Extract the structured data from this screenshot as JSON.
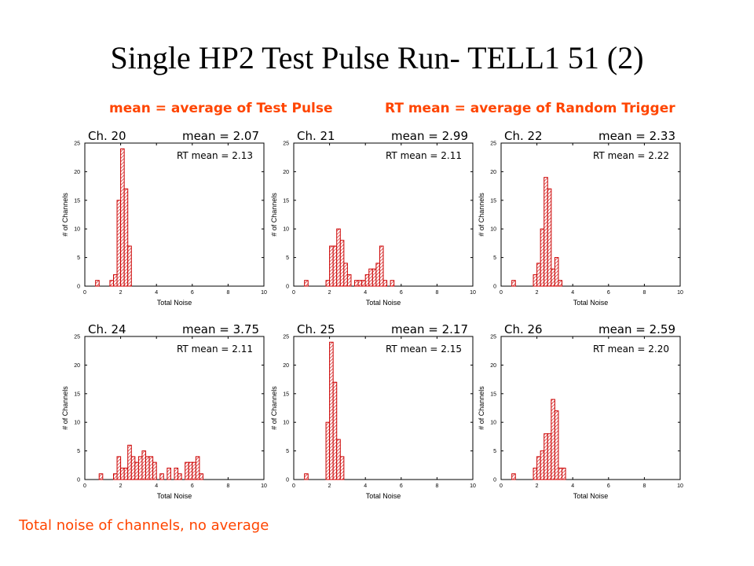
{
  "title": "Single HP2 Test Pulse Run- TELL1  51 (2)",
  "legend_left": "mean = average of Test Pulse",
  "legend_right": "RT mean = average of Random Trigger",
  "footer": "Total noise of channels, no average",
  "colors": {
    "accent": "#ff4500",
    "bar": "#cc0000"
  },
  "chart_data": [
    {
      "type": "bar",
      "channel": "Ch. 20",
      "mean": "mean = 2.07",
      "rt_mean": "RT mean = 2.13",
      "xlabel": "Total Noise",
      "ylabel": "# of Channels",
      "xlim": [
        0,
        10
      ],
      "ylim": [
        0,
        25
      ],
      "bin_width": 0.2,
      "bins": [
        [
          0.6,
          1
        ],
        [
          1.4,
          1
        ],
        [
          1.6,
          2
        ],
        [
          1.8,
          15
        ],
        [
          2.0,
          24
        ],
        [
          2.2,
          17
        ],
        [
          2.4,
          7
        ]
      ]
    },
    {
      "type": "bar",
      "channel": "Ch. 21",
      "mean": "mean = 2.99",
      "rt_mean": "RT mean = 2.11",
      "xlabel": "Total Noise",
      "ylabel": "# of Channels",
      "xlim": [
        0,
        10
      ],
      "ylim": [
        0,
        25
      ],
      "bin_width": 0.2,
      "bins": [
        [
          0.6,
          1
        ],
        [
          1.8,
          1
        ],
        [
          2.0,
          7
        ],
        [
          2.2,
          7
        ],
        [
          2.4,
          10
        ],
        [
          2.6,
          8
        ],
        [
          2.8,
          4
        ],
        [
          3.0,
          2
        ],
        [
          3.4,
          1
        ],
        [
          3.6,
          1
        ],
        [
          3.8,
          1
        ],
        [
          4.0,
          2
        ],
        [
          4.2,
          3
        ],
        [
          4.4,
          3
        ],
        [
          4.6,
          4
        ],
        [
          4.8,
          7
        ],
        [
          5.0,
          1
        ],
        [
          5.4,
          1
        ]
      ]
    },
    {
      "type": "bar",
      "channel": "Ch. 22",
      "mean": "mean = 2.33",
      "rt_mean": "RT mean = 2.22",
      "xlabel": "Total Noise",
      "ylabel": "# of Channels",
      "xlim": [
        0,
        10
      ],
      "ylim": [
        0,
        25
      ],
      "bin_width": 0.2,
      "bins": [
        [
          0.6,
          1
        ],
        [
          1.8,
          2
        ],
        [
          2.0,
          4
        ],
        [
          2.2,
          10
        ],
        [
          2.4,
          19
        ],
        [
          2.6,
          17
        ],
        [
          2.8,
          3
        ],
        [
          3.0,
          5
        ],
        [
          3.2,
          1
        ]
      ]
    },
    {
      "type": "bar",
      "channel": "Ch. 24",
      "mean": "mean = 3.75",
      "rt_mean": "RT mean = 2.11",
      "xlabel": "Total Noise",
      "ylabel": "# of Channels",
      "xlim": [
        0,
        10
      ],
      "ylim": [
        0,
        25
      ],
      "bin_width": 0.2,
      "bins": [
        [
          0.8,
          1
        ],
        [
          1.6,
          1
        ],
        [
          1.8,
          4
        ],
        [
          2.0,
          2
        ],
        [
          2.2,
          2
        ],
        [
          2.4,
          6
        ],
        [
          2.6,
          4
        ],
        [
          2.8,
          3
        ],
        [
          3.0,
          4
        ],
        [
          3.2,
          5
        ],
        [
          3.4,
          4
        ],
        [
          3.6,
          4
        ],
        [
          3.8,
          3
        ],
        [
          4.2,
          1
        ],
        [
          4.6,
          2
        ],
        [
          5.0,
          2
        ],
        [
          5.2,
          1
        ],
        [
          5.6,
          3
        ],
        [
          5.8,
          3
        ],
        [
          6.0,
          3
        ],
        [
          6.2,
          4
        ],
        [
          6.4,
          1
        ]
      ]
    },
    {
      "type": "bar",
      "channel": "Ch. 25",
      "mean": "mean = 2.17",
      "rt_mean": "RT mean = 2.15",
      "xlabel": "Total Noise",
      "ylabel": "# of Channels",
      "xlim": [
        0,
        10
      ],
      "ylim": [
        0,
        25
      ],
      "bin_width": 0.2,
      "bins": [
        [
          0.6,
          1
        ],
        [
          1.8,
          10
        ],
        [
          2.0,
          24
        ],
        [
          2.2,
          17
        ],
        [
          2.4,
          7
        ],
        [
          2.6,
          4
        ]
      ]
    },
    {
      "type": "bar",
      "channel": "Ch. 26",
      "mean": "mean = 2.59",
      "rt_mean": "RT mean = 2.20",
      "xlabel": "Total Noise",
      "ylabel": "# of Channels",
      "xlim": [
        0,
        10
      ],
      "ylim": [
        0,
        25
      ],
      "bin_width": 0.2,
      "bins": [
        [
          0.6,
          1
        ],
        [
          1.8,
          2
        ],
        [
          2.0,
          4
        ],
        [
          2.2,
          5
        ],
        [
          2.4,
          8
        ],
        [
          2.6,
          8
        ],
        [
          2.8,
          14
        ],
        [
          3.0,
          12
        ],
        [
          3.2,
          2
        ],
        [
          3.4,
          2
        ]
      ]
    }
  ]
}
